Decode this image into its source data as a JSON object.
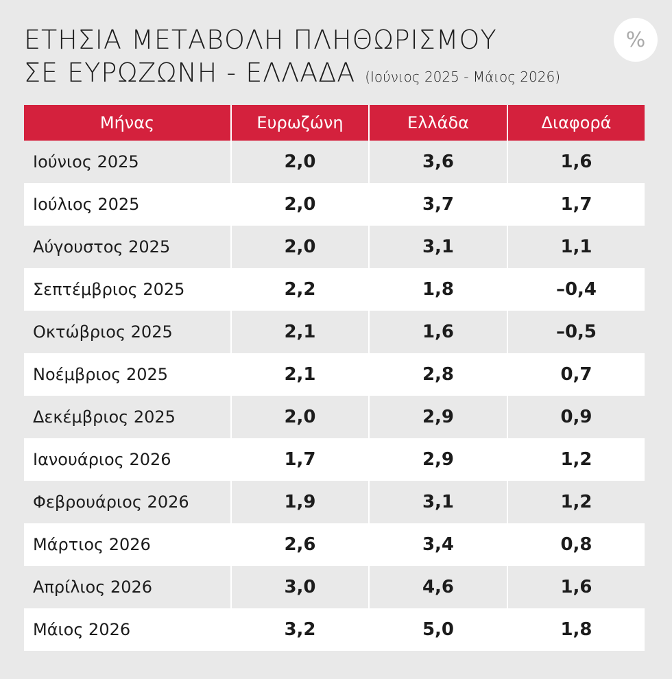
{
  "header": {
    "title_line1": "ΕΤΗΣΙΑ ΜΕΤΑΒΟΛΗ ΠΛΗΘΩΡΙΣΜΟΥ",
    "title_line2": "ΣΕ ΕΥΡΩΖΩΝΗ - ΕΛΛΑΔΑ",
    "subtitle": "(Ιούνιος 2025 - Μάιος 2026)",
    "badge": "%"
  },
  "table": {
    "columns": [
      "Μήνας",
      "Ευρωζώνη",
      "Ελλάδα",
      "Διαφορά"
    ],
    "rows": [
      [
        "Ιούνιος 2025",
        "2,0",
        "3,6",
        "1,6"
      ],
      [
        "Ιούλιος 2025",
        "2,0",
        "3,7",
        "1,7"
      ],
      [
        "Αύγουστος 2025",
        "2,0",
        "3,1",
        "1,1"
      ],
      [
        "Σεπτέμβριος 2025",
        "2,2",
        "1,8",
        "–0,4"
      ],
      [
        "Οκτώβριος 2025",
        "2,1",
        "1,6",
        "–0,5"
      ],
      [
        "Νοέμβριος 2025",
        "2,1",
        "2,8",
        "0,7"
      ],
      [
        "Δεκέμβριος 2025",
        "2,0",
        "2,9",
        "0,9"
      ],
      [
        "Ιανουάριος 2026",
        "1,7",
        "2,9",
        "1,2"
      ],
      [
        "Φεβρουάριος 2026",
        "1,9",
        "3,1",
        "1,2"
      ],
      [
        "Μάρτιος 2026",
        "2,6",
        "3,4",
        "0,8"
      ],
      [
        "Απρίλιος 2026",
        "3,0",
        "4,6",
        "1,6"
      ],
      [
        "Μάιος 2026",
        "3,2",
        "5,0",
        "1,8"
      ]
    ]
  }
}
